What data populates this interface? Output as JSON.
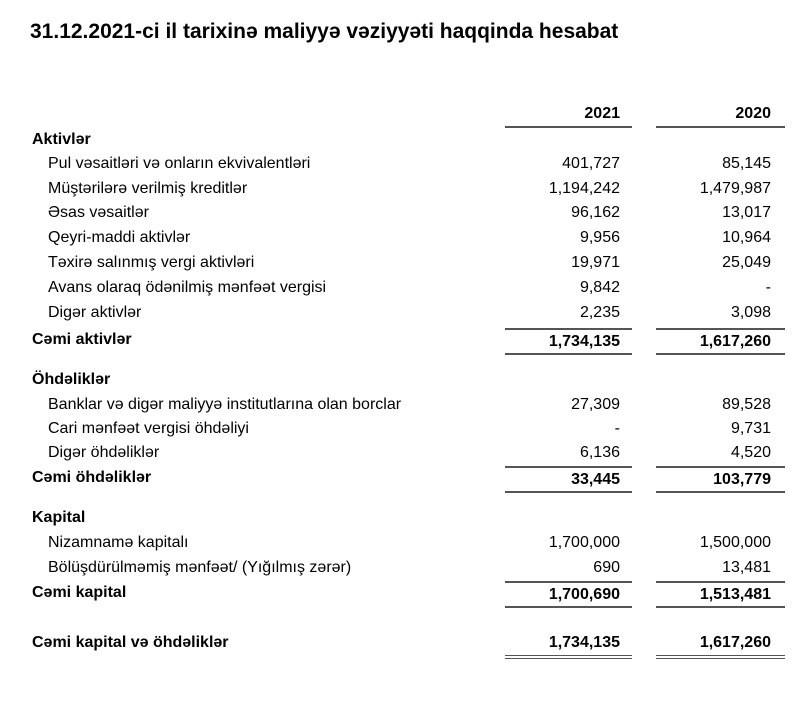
{
  "title": "31.12.2021-ci il tarixinə maliyyə vəziyyəti haqqinda hesabat",
  "columns": [
    "2021",
    "2020"
  ],
  "rows": [
    {
      "type": "section",
      "label": "Aktivlər"
    },
    {
      "type": "item",
      "label": "Pul vəsaitləri və onların ekvivalentləri",
      "v2021": "401,727",
      "v2020": "85,145"
    },
    {
      "type": "item",
      "label": "Müştərilərə verilmiş kreditlər",
      "v2021": "1,194,242",
      "v2020": "1,479,987"
    },
    {
      "type": "item",
      "label": "Əsas vəsaitlər",
      "v2021": "96,162",
      "v2020": "13,017"
    },
    {
      "type": "item",
      "label": "Qeyri-maddi aktivlər",
      "v2021": "9,956",
      "v2020": "10,964"
    },
    {
      "type": "item",
      "label": "Təxirə salınmış vergi aktivləri",
      "v2021": "19,971",
      "v2020": "25,049"
    },
    {
      "type": "item",
      "label": "Avans olaraq ödənilmiş mənfəət vergisi",
      "v2021": "9,842",
      "v2020": "-"
    },
    {
      "type": "item",
      "label": "Digər aktivlər",
      "v2021": "2,235",
      "v2020": "3,098"
    },
    {
      "type": "total",
      "label": "Cəmi aktivlər",
      "v2021": "1,734,135",
      "v2020": "1,617,260"
    },
    {
      "type": "section",
      "label": "Öhdəliklər"
    },
    {
      "type": "item",
      "label": "Banklar və digər maliyyə institutlarına olan borclar",
      "v2021": "27,309",
      "v2020": "89,528"
    },
    {
      "type": "item",
      "label": "Cari mənfəət vergisi öhdəliyi",
      "v2021": "-",
      "v2020": "9,731"
    },
    {
      "type": "item",
      "label": "Digər öhdəliklər",
      "v2021": "6,136",
      "v2020": "4,520"
    },
    {
      "type": "total",
      "label": "Cəmi öhdəliklər",
      "v2021": "33,445",
      "v2020": "103,779"
    },
    {
      "type": "section",
      "label": "Kapital"
    },
    {
      "type": "item",
      "label": "Nizamnamə kapitalı",
      "v2021": "1,700,000",
      "v2020": "1,500,000"
    },
    {
      "type": "item",
      "label": "Bölüşdürülməmiş mənfəət/ (Yığılmış zərər)",
      "v2021": "690",
      "v2020": "13,481"
    },
    {
      "type": "total",
      "label": "Cəmi kapital",
      "v2021": "1,700,690",
      "v2020": "1,513,481"
    },
    {
      "type": "grand",
      "label": "Cəmi kapital və öhdəliklər",
      "v2021": "1,734,135",
      "v2020": "1,617,260"
    }
  ]
}
